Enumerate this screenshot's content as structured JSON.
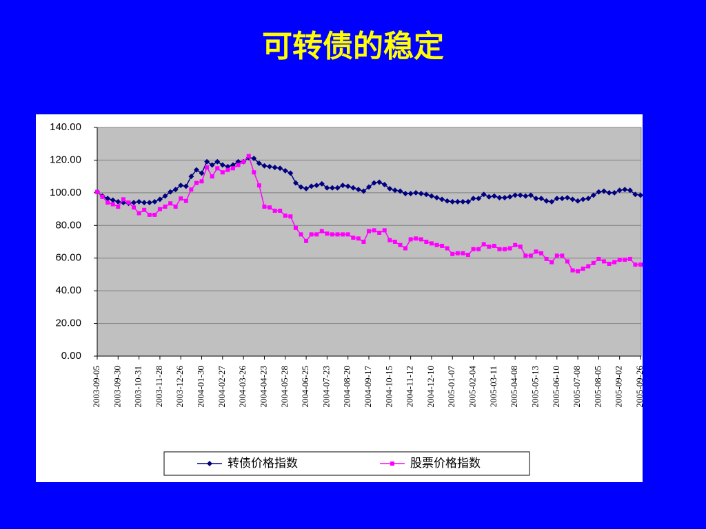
{
  "chart_data": {
    "type": "line",
    "title": "可转债的稳定",
    "categories": [
      "2003-09-05",
      null,
      null,
      null,
      "2003-09-30",
      null,
      null,
      null,
      "2003-10-31",
      null,
      null,
      null,
      "2003-11-28",
      null,
      null,
      null,
      "2003-12-26",
      null,
      null,
      null,
      "2004-01-30",
      null,
      null,
      null,
      "2004-02-27",
      null,
      null,
      null,
      "2004-03-26",
      null,
      null,
      null,
      "2004-04-23",
      null,
      null,
      null,
      "2004-05-28",
      null,
      null,
      null,
      "2004-06-25",
      null,
      null,
      null,
      "2004-07-23",
      null,
      null,
      null,
      "2004-08-20",
      null,
      null,
      null,
      "2004-09-17",
      null,
      null,
      null,
      "2004-10-15",
      null,
      null,
      null,
      "2004-11-12",
      null,
      null,
      null,
      "2004-12-10",
      null,
      null,
      null,
      "2005-01-07",
      null,
      null,
      null,
      "2005-02-04",
      null,
      null,
      null,
      "2005-03-11",
      null,
      null,
      null,
      "2005-04-08",
      null,
      null,
      null,
      "2005-05-13",
      null,
      null,
      null,
      "2005-06-10",
      null,
      null,
      null,
      "2005-07-08",
      null,
      null,
      null,
      "2005-08-05",
      null,
      null,
      null,
      "2005-09-02",
      null,
      null,
      null,
      "2005-09-26"
    ],
    "series": [
      {
        "name": "转债价格指数",
        "color": "#000080",
        "marker": "diamond",
        "values": [
          100.5,
          98,
          96.5,
          95.5,
          94.5,
          94,
          93.5,
          94,
          94.5,
          94,
          94,
          94.5,
          96,
          98,
          100.5,
          102,
          104.5,
          104,
          110,
          114,
          112,
          119,
          117,
          119,
          117,
          116,
          117,
          119,
          119,
          121.5,
          121,
          118,
          116.5,
          116,
          115.5,
          115,
          113.5,
          112,
          106,
          103.5,
          102.5,
          104,
          104.5,
          105.5,
          103,
          103,
          103,
          104.5,
          104,
          103,
          102,
          101,
          103.5,
          106,
          106.5,
          105,
          102.5,
          101.5,
          101,
          99.5,
          99.5,
          100,
          99.5,
          99,
          98,
          97,
          96,
          95,
          94.5,
          94.5,
          94.5,
          94.5,
          96.5,
          96.5,
          99,
          97.5,
          98,
          97,
          97,
          97.5,
          98.5,
          98.5,
          98,
          98.5,
          96.5,
          96.5,
          95,
          94.5,
          96.5,
          96.5,
          97,
          96,
          95,
          96,
          96.5,
          98.5,
          100.5,
          101,
          100,
          100,
          101.5,
          102,
          101.5,
          99,
          98.5
        ]
      },
      {
        "name": "股票价格指数",
        "color": "#ff00ff",
        "marker": "square",
        "values": [
          100.5,
          97.5,
          94,
          93,
          91.5,
          96,
          94,
          91,
          87.5,
          89.5,
          86.5,
          86.5,
          90,
          91.5,
          93.5,
          91.5,
          96.5,
          95,
          102,
          106,
          107,
          115.5,
          110,
          115,
          112.5,
          114,
          115,
          117,
          119,
          122.5,
          112.5,
          104.5,
          91.5,
          91,
          89,
          89,
          86,
          85.5,
          78.5,
          74.5,
          70.5,
          74.5,
          74.5,
          76.5,
          75,
          74.5,
          74.5,
          74.5,
          74.5,
          72.5,
          72,
          70,
          76.5,
          77,
          75.5,
          77,
          71,
          70,
          68,
          66,
          71.5,
          72,
          71.5,
          70,
          69,
          68,
          67.5,
          66,
          62.5,
          63,
          63,
          62,
          65.5,
          65.5,
          68.5,
          67,
          67.5,
          65.5,
          65.5,
          66,
          68,
          67,
          61.5,
          61.5,
          64,
          63,
          59.5,
          57.5,
          61.5,
          61.5,
          58,
          52.5,
          52,
          53.5,
          55,
          57,
          59.5,
          58,
          56.5,
          57.5,
          59,
          59,
          59.5,
          56,
          56
        ]
      }
    ],
    "ylim": [
      0,
      140
    ],
    "yticks": [
      {
        "value": 0,
        "label": "0.00"
      },
      {
        "value": 20,
        "label": "20.00"
      },
      {
        "value": 40,
        "label": "40.00"
      },
      {
        "value": 60,
        "label": "60.00"
      },
      {
        "value": 80,
        "label": "80.00"
      },
      {
        "value": 100,
        "label": "100.00"
      },
      {
        "value": 120,
        "label": "120.00"
      },
      {
        "value": 140,
        "label": "140.00"
      }
    ],
    "grid": true,
    "legend": "bottom"
  }
}
